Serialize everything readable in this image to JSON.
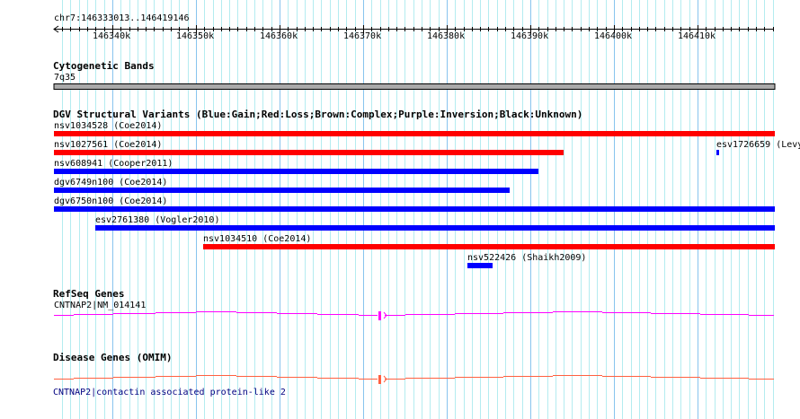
{
  "region": {
    "chrom": "chr7",
    "start": 146333013,
    "end": 146419146,
    "label": "chr7:146333013..146419146"
  },
  "ruler": {
    "ticks": [
      "146340k",
      "146350k",
      "146360k",
      "146370k",
      "146380k",
      "146390k",
      "146400k",
      "146410k"
    ],
    "tick_values": [
      146340000,
      146350000,
      146360000,
      146370000,
      146380000,
      146390000,
      146400000,
      146410000
    ]
  },
  "tracks": {
    "cyto": {
      "title": "Cytogenetic Bands",
      "band": "7q35"
    },
    "dgv": {
      "title": "DGV Structural Variants (Blue:Gain;Red:Loss;Brown:Complex;Purple:Inversion;Black:Unknown)",
      "colors": {
        "gain": "#0000ff",
        "loss": "#ff0000"
      },
      "variants": [
        {
          "label": "nsv1034528 (Coe2014)",
          "start": 146333013,
          "end": 146419146,
          "type": "loss"
        },
        {
          "label": "nsv1027561 (Coe2014)",
          "start": 146333013,
          "end": 146393870,
          "type": "loss"
        },
        {
          "label": "esv1726659 (Levy",
          "start": 146412260,
          "end": 146412470,
          "type": "gain"
        },
        {
          "label": "nsv608941 (Cooper2011)",
          "start": 146333013,
          "end": 146390860,
          "type": "gain"
        },
        {
          "label": "dgv6749n100 (Coe2014)",
          "start": 146333013,
          "end": 146387420,
          "type": "gain"
        },
        {
          "label": "dgv6750n100 (Coe2014)",
          "start": 146333013,
          "end": 146419146,
          "type": "gain"
        },
        {
          "label": "esv2761380 (Vogler2010)",
          "start": 146337960,
          "end": 146419146,
          "type": "gain"
        },
        {
          "label": "nsv1034510 (Coe2014)",
          "start": 146350860,
          "end": 146419146,
          "type": "loss"
        },
        {
          "label": "nsv522426 (Shaikh2009)",
          "start": 146382470,
          "end": 146385380,
          "type": "gain"
        }
      ]
    },
    "refseq": {
      "title": "RefSeq Genes",
      "gene": "CNTNAP2|NM_014141",
      "color": "#ff00ff",
      "exon": 146371940
    },
    "omim": {
      "title": "Disease Genes (OMIM)",
      "gene": "CNTNAP2|contactin associated protein-like 2",
      "color": "#ff6040",
      "exon": 146371940
    }
  }
}
